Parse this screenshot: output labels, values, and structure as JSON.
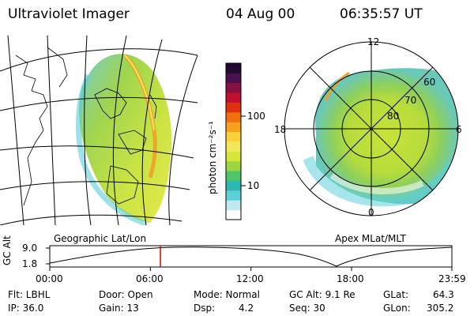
{
  "header": {
    "instrument": "Ultraviolet Imager",
    "date": "04 Aug 00",
    "time": "06:35:57 UT"
  },
  "colorbar": {
    "unit_label": "photon cm⁻²s⁻¹",
    "tick_100": "100",
    "tick_10": "10",
    "colors": [
      "#ffffff",
      "#bfe8f0",
      "#5ccfd8",
      "#2ab8b0",
      "#4fc56a",
      "#9bd540",
      "#d4e63a",
      "#f4e65a",
      "#fbd03a",
      "#f8a020",
      "#f07010",
      "#e03010",
      "#c01030",
      "#8a1040",
      "#4a1050",
      "#200a30"
    ]
  },
  "left_panel": {
    "label": "Geographic Lat/Lon"
  },
  "right_panel": {
    "label": "Apex MLat/MLT",
    "mlt_12": "12",
    "mlt_18": "18",
    "mlt_6": "6",
    "mlt_0": "0",
    "lat_60": "60",
    "lat_70": "70",
    "lat_80": "80"
  },
  "altitude_plot": {
    "ylabel": "GC Alt",
    "ytick_top": "9.0",
    "ytick_bottom": "1.8",
    "xticks": [
      "00:00",
      "06:00",
      "12:00",
      "18:00",
      "23:59"
    ],
    "marker_time_hours": 6.6,
    "marker_color": "#e00000"
  },
  "info": {
    "filter": "Flt: LBHL",
    "ip": "IP: 36.0",
    "door": "Door: Open",
    "gain": "Gain: 13",
    "mode": "Mode: Normal",
    "dsp_label": "Dsp:",
    "dsp_value": "4.2",
    "gc_alt": "GC Alt: 9.1 Re",
    "seq": "Seq: 30",
    "glat_label": "GLat:",
    "glat_value": "64.3",
    "glon_label": "GLon:",
    "glon_value": "305.2"
  }
}
